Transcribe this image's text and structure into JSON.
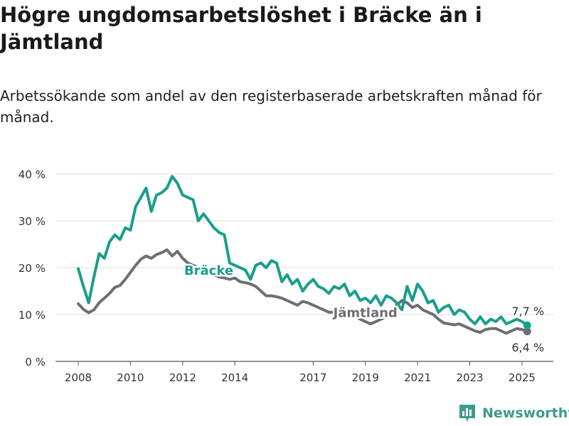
{
  "header": {
    "title": "Högre ungdomsarbetslöshet i Bräcke än i Jämtland",
    "subtitle": "Arbetssökande som andel av den registerbaserade arbetskraften månad för månad."
  },
  "brand": {
    "name": "Newsworthy"
  },
  "chart_data": {
    "type": "line",
    "ylim": [
      0,
      40
    ],
    "yticks": [
      0,
      10,
      20,
      30,
      40
    ],
    "ytick_labels": [
      "0 %",
      "10 %",
      "20 %",
      "30 %",
      "40 %"
    ],
    "xlim": [
      2007.6,
      2025.5
    ],
    "xticks": [
      2008,
      2010,
      2012,
      2014,
      2017,
      2019,
      2021,
      2023,
      2025
    ],
    "xtick_labels": [
      "2008",
      "2010",
      "2012",
      "2014",
      "2017",
      "2019",
      "2021",
      "2023",
      "2025"
    ],
    "grid": true,
    "series": [
      {
        "name": "Jämtland",
        "color": "#6e6e73",
        "label_at": [
          2019.0,
          9.5
        ],
        "end_label": "6,4 %",
        "points": [
          [
            2008.0,
            12.3
          ],
          [
            2008.2,
            11.1
          ],
          [
            2008.4,
            10.4
          ],
          [
            2008.6,
            11.0
          ],
          [
            2008.8,
            12.5
          ],
          [
            2009.0,
            13.5
          ],
          [
            2009.2,
            14.5
          ],
          [
            2009.4,
            15.8
          ],
          [
            2009.6,
            16.2
          ],
          [
            2009.8,
            17.5
          ],
          [
            2010.0,
            19.0
          ],
          [
            2010.2,
            20.5
          ],
          [
            2010.4,
            21.8
          ],
          [
            2010.6,
            22.5
          ],
          [
            2010.8,
            22.0
          ],
          [
            2011.0,
            22.8
          ],
          [
            2011.2,
            23.2
          ],
          [
            2011.4,
            23.8
          ],
          [
            2011.6,
            22.5
          ],
          [
            2011.8,
            23.5
          ],
          [
            2012.0,
            22.0
          ],
          [
            2012.2,
            21.0
          ],
          [
            2012.4,
            20.5
          ],
          [
            2012.6,
            20.0
          ],
          [
            2012.8,
            19.5
          ],
          [
            2013.0,
            19.0
          ],
          [
            2013.2,
            18.5
          ],
          [
            2013.4,
            18.0
          ],
          [
            2013.6,
            17.8
          ],
          [
            2013.8,
            17.5
          ],
          [
            2014.0,
            17.8
          ],
          [
            2014.2,
            17.0
          ],
          [
            2014.4,
            16.8
          ],
          [
            2014.6,
            16.5
          ],
          [
            2014.8,
            16.0
          ],
          [
            2015.0,
            15.0
          ],
          [
            2015.2,
            14.0
          ],
          [
            2015.4,
            14.0
          ],
          [
            2015.6,
            13.8
          ],
          [
            2015.8,
            13.5
          ],
          [
            2016.0,
            13.0
          ],
          [
            2016.2,
            12.5
          ],
          [
            2016.4,
            12.0
          ],
          [
            2016.6,
            12.8
          ],
          [
            2016.8,
            12.5
          ],
          [
            2017.0,
            12.0
          ],
          [
            2017.2,
            11.5
          ],
          [
            2017.4,
            11.0
          ],
          [
            2017.6,
            10.5
          ],
          [
            2017.8,
            10.5
          ],
          [
            2018.0,
            10.8
          ],
          [
            2018.2,
            10.5
          ],
          [
            2018.4,
            10.0
          ],
          [
            2018.6,
            9.8
          ],
          [
            2018.8,
            9.0
          ],
          [
            2019.0,
            8.5
          ],
          [
            2019.2,
            8.0
          ],
          [
            2019.4,
            8.5
          ],
          [
            2019.6,
            9.0
          ],
          [
            2019.8,
            9.5
          ],
          [
            2020.0,
            10.5
          ],
          [
            2020.2,
            12.0
          ],
          [
            2020.4,
            13.0
          ],
          [
            2020.6,
            12.5
          ],
          [
            2020.8,
            11.5
          ],
          [
            2021.0,
            12.0
          ],
          [
            2021.2,
            11.0
          ],
          [
            2021.4,
            10.5
          ],
          [
            2021.6,
            10.0
          ],
          [
            2021.8,
            9.0
          ],
          [
            2022.0,
            8.2
          ],
          [
            2022.2,
            8.0
          ],
          [
            2022.4,
            7.8
          ],
          [
            2022.6,
            8.0
          ],
          [
            2022.8,
            7.5
          ],
          [
            2023.0,
            7.0
          ],
          [
            2023.2,
            6.5
          ],
          [
            2023.4,
            6.2
          ],
          [
            2023.6,
            6.8
          ],
          [
            2023.8,
            7.0
          ],
          [
            2024.0,
            7.0
          ],
          [
            2024.2,
            6.5
          ],
          [
            2024.4,
            6.0
          ],
          [
            2024.6,
            6.5
          ],
          [
            2024.8,
            7.0
          ],
          [
            2025.0,
            6.8
          ],
          [
            2025.2,
            6.4
          ]
        ]
      },
      {
        "name": "Bräcke",
        "color": "#1a9e8c",
        "label_at": [
          2013.0,
          18.5
        ],
        "end_label": "7,7 %",
        "points": [
          [
            2008.0,
            19.8
          ],
          [
            2008.2,
            16.0
          ],
          [
            2008.4,
            12.5
          ],
          [
            2008.6,
            18.0
          ],
          [
            2008.8,
            23.0
          ],
          [
            2009.0,
            22.0
          ],
          [
            2009.2,
            25.5
          ],
          [
            2009.4,
            27.0
          ],
          [
            2009.6,
            26.0
          ],
          [
            2009.8,
            28.5
          ],
          [
            2010.0,
            28.0
          ],
          [
            2010.2,
            33.0
          ],
          [
            2010.4,
            35.0
          ],
          [
            2010.6,
            37.0
          ],
          [
            2010.8,
            32.0
          ],
          [
            2011.0,
            35.5
          ],
          [
            2011.2,
            36.0
          ],
          [
            2011.4,
            37.0
          ],
          [
            2011.6,
            39.5
          ],
          [
            2011.8,
            38.0
          ],
          [
            2012.0,
            35.5
          ],
          [
            2012.2,
            35.0
          ],
          [
            2012.4,
            34.5
          ],
          [
            2012.6,
            30.0
          ],
          [
            2012.8,
            31.5
          ],
          [
            2013.0,
            30.0
          ],
          [
            2013.2,
            28.5
          ],
          [
            2013.4,
            27.5
          ],
          [
            2013.6,
            27.0
          ],
          [
            2013.8,
            21.0
          ],
          [
            2014.0,
            20.5
          ],
          [
            2014.2,
            20.0
          ],
          [
            2014.4,
            19.5
          ],
          [
            2014.6,
            17.5
          ],
          [
            2014.8,
            20.5
          ],
          [
            2015.0,
            21.0
          ],
          [
            2015.2,
            20.0
          ],
          [
            2015.4,
            21.5
          ],
          [
            2015.6,
            21.0
          ],
          [
            2015.8,
            17.0
          ],
          [
            2016.0,
            18.5
          ],
          [
            2016.2,
            16.5
          ],
          [
            2016.4,
            17.5
          ],
          [
            2016.6,
            15.0
          ],
          [
            2016.8,
            16.5
          ],
          [
            2017.0,
            17.5
          ],
          [
            2017.2,
            16.0
          ],
          [
            2017.4,
            15.5
          ],
          [
            2017.6,
            14.5
          ],
          [
            2017.8,
            16.0
          ],
          [
            2018.0,
            15.5
          ],
          [
            2018.2,
            16.5
          ],
          [
            2018.4,
            14.0
          ],
          [
            2018.6,
            15.0
          ],
          [
            2018.8,
            13.0
          ],
          [
            2019.0,
            13.5
          ],
          [
            2019.2,
            12.5
          ],
          [
            2019.4,
            14.0
          ],
          [
            2019.6,
            12.0
          ],
          [
            2019.8,
            14.0
          ],
          [
            2020.0,
            13.5
          ],
          [
            2020.2,
            12.5
          ],
          [
            2020.4,
            11.0
          ],
          [
            2020.6,
            16.0
          ],
          [
            2020.8,
            13.0
          ],
          [
            2021.0,
            16.5
          ],
          [
            2021.2,
            15.0
          ],
          [
            2021.4,
            12.5
          ],
          [
            2021.6,
            13.0
          ],
          [
            2021.8,
            10.5
          ],
          [
            2022.0,
            11.5
          ],
          [
            2022.2,
            12.0
          ],
          [
            2022.4,
            10.0
          ],
          [
            2022.6,
            11.0
          ],
          [
            2022.8,
            10.5
          ],
          [
            2023.0,
            9.0
          ],
          [
            2023.2,
            8.0
          ],
          [
            2023.4,
            9.5
          ],
          [
            2023.6,
            8.0
          ],
          [
            2023.8,
            9.0
          ],
          [
            2024.0,
            8.5
          ],
          [
            2024.2,
            9.5
          ],
          [
            2024.4,
            8.0
          ],
          [
            2024.6,
            8.5
          ],
          [
            2024.8,
            9.0
          ],
          [
            2025.0,
            8.5
          ],
          [
            2025.2,
            7.7
          ]
        ]
      }
    ]
  }
}
